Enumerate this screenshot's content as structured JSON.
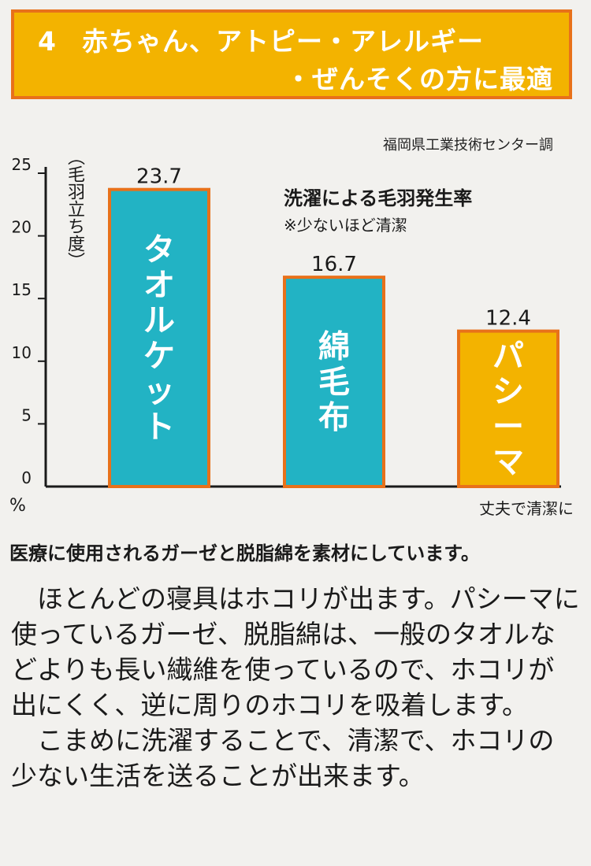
{
  "banner": {
    "number": "4",
    "line1": "赤ちゃん、アトピー・アレルギー",
    "line2": "・ぜんそくの方に最適"
  },
  "source": "福岡県工業技術センター調",
  "chart_data": {
    "type": "bar",
    "title": "洗濯による毛羽発生率",
    "note": "※少ないほど清潔",
    "ylabel": "（毛羽立ち度）",
    "unit": "%",
    "categories": [
      "タオルケット",
      "綿毛布",
      "パシーマ"
    ],
    "values": [
      23.7,
      16.7,
      12.4
    ],
    "value_labels": [
      "23.7",
      "16.7",
      "12.4"
    ],
    "yticks": [
      "0",
      "5",
      "10",
      "15",
      "20",
      "25"
    ],
    "ylim": [
      0,
      25
    ],
    "x_note": "丈夫で清潔に",
    "colors": [
      "#22b3c4",
      "#22b3c4",
      "#f3b300"
    ],
    "border_colors": [
      "#e8711a",
      "#e8711a",
      "#e8711a"
    ]
  },
  "subhead": "医療に使用されるガーゼと脱脂綿を素材にしています。",
  "body": {
    "p1": "ほとんどの寝具はホコリが出ます。パシーマに使っているガーゼ、脱脂綿は、一般のタオルなどよりも長い繊維を使っているので、ホコリが出にくく、逆に周りのホコリを吸着します。",
    "p2": "こまめに洗濯することで、清潔で、ホコリの少ない生活を送ることが出来ます。"
  }
}
